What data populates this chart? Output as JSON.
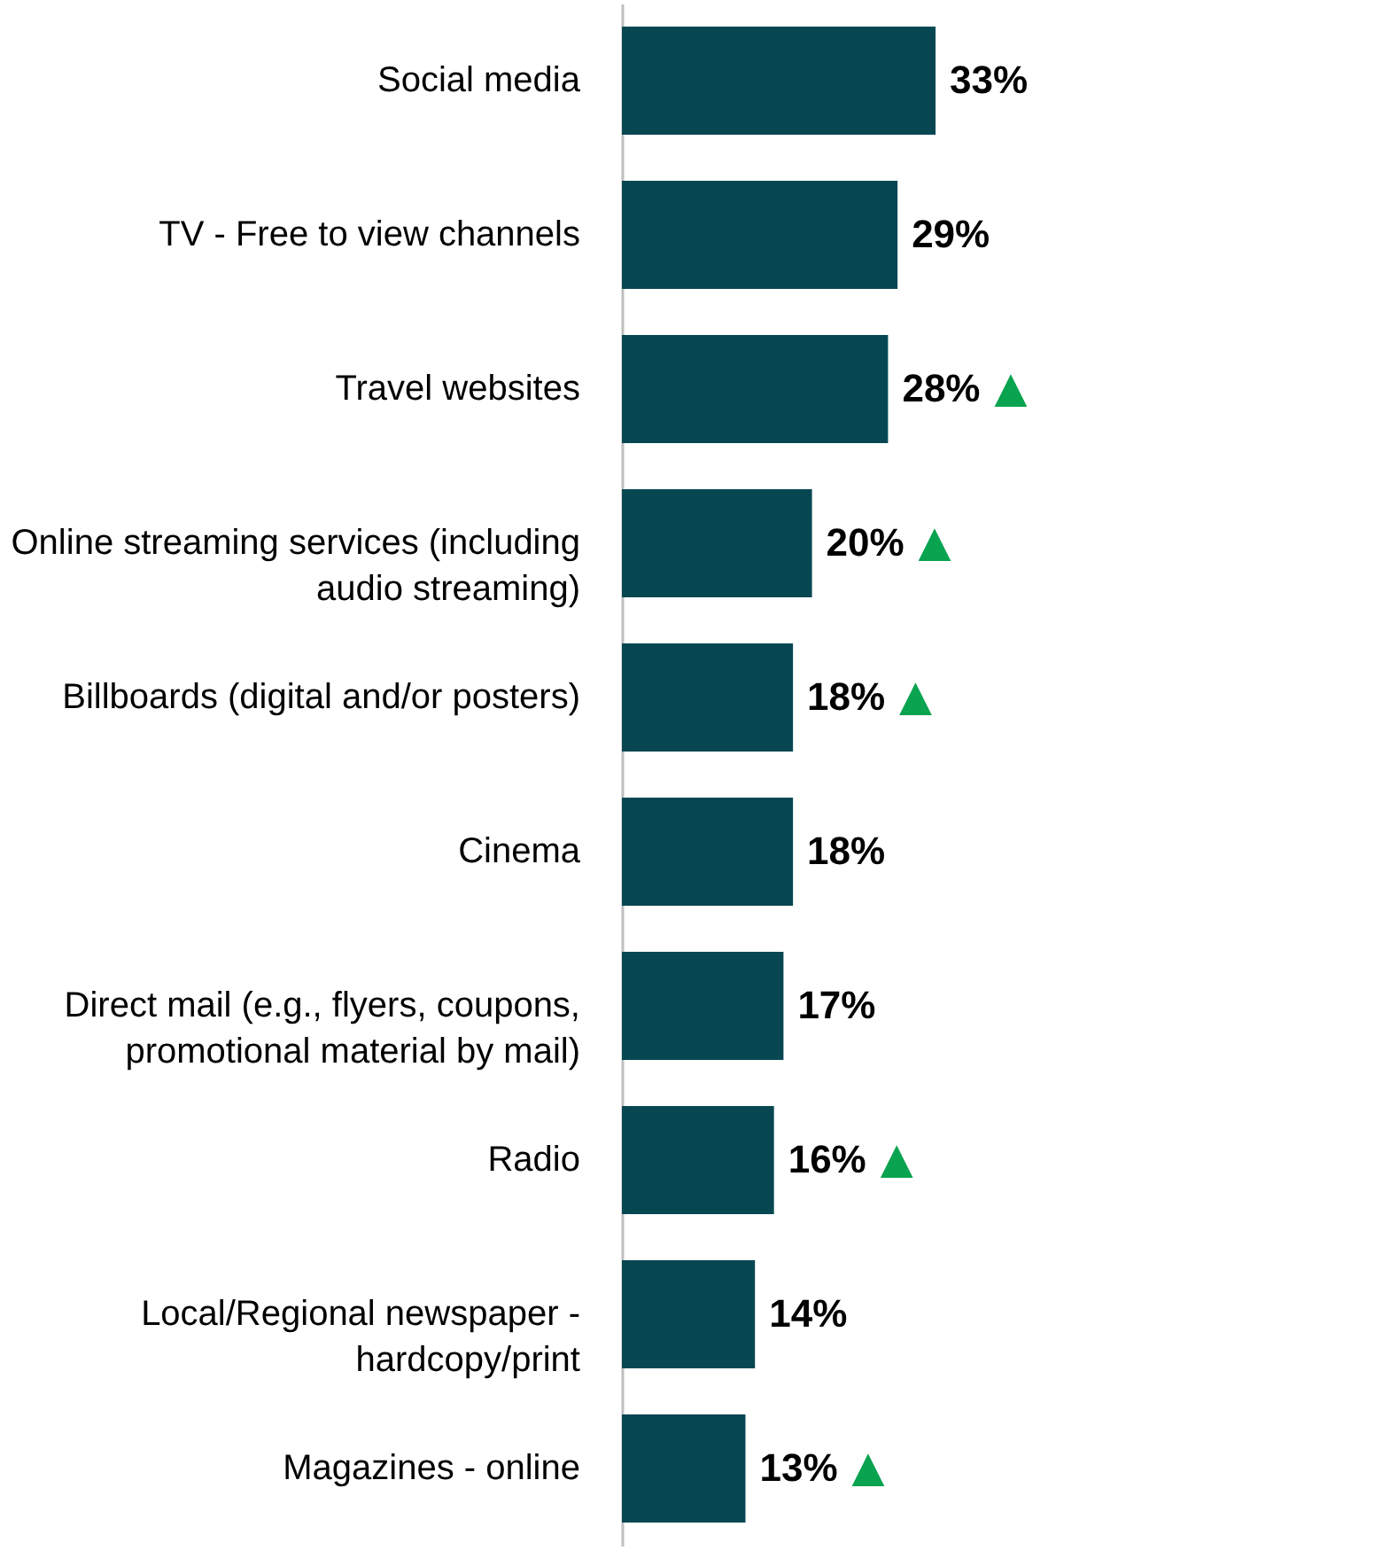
{
  "chart_data": {
    "type": "bar",
    "orientation": "horizontal",
    "categories": [
      "Social media",
      "TV - Free to view channels",
      "Travel websites",
      "Online streaming services (including\naudio streaming)",
      "Billboards (digital and/or posters)",
      "Cinema",
      "Direct mail (e.g., flyers, coupons,\npromotional material by mail)",
      "Radio",
      "Local/Regional newspaper -\nhardcopy/print",
      "Magazines - online"
    ],
    "values": [
      33,
      29,
      28,
      20,
      18,
      18,
      17,
      16,
      14,
      13
    ],
    "value_labels": [
      "33%",
      "29%",
      "28%",
      "20%",
      "18%",
      "18%",
      "17%",
      "16%",
      "14%",
      "13%"
    ],
    "color": "#074752",
    "annotations": [
      {
        "text": "▲",
        "x": 28,
        "y": "Travel websites"
      },
      {
        "text": "▲",
        "x": 20,
        "y": "Online streaming services (including\naudio streaming)"
      },
      {
        "text": "▲",
        "x": 18,
        "y": "Billboards (digital and/or posters)"
      },
      {
        "text": "▲",
        "x": 16,
        "y": "Radio"
      },
      {
        "text": "▲",
        "x": 13,
        "y": "Magazines - online"
      }
    ]
  }
}
